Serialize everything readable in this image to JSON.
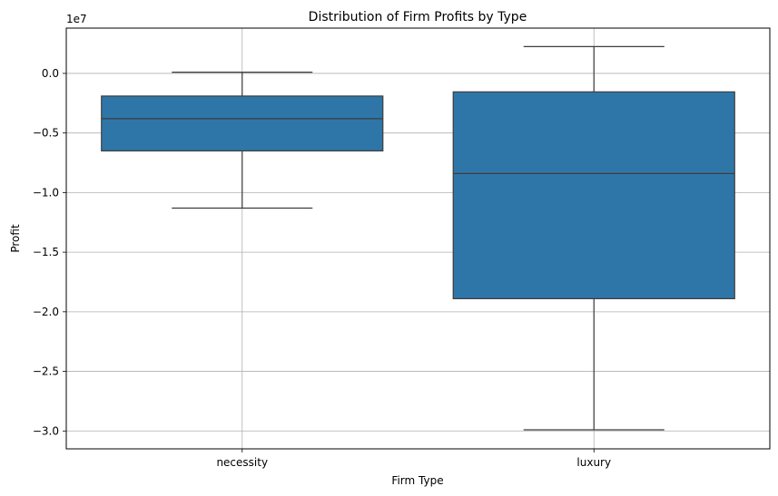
{
  "chart_data": {
    "type": "box",
    "title": "Distribution of Firm Profits by Type",
    "xlabel": "Firm Type",
    "ylabel": "Profit",
    "y_offset_label": "1e7",
    "y_scale": 10000000,
    "ylim": [
      -31500000,
      3800000
    ],
    "yticks": [
      0,
      -5000000,
      -10000000,
      -15000000,
      -20000000,
      -25000000,
      -30000000
    ],
    "ytick_labels": [
      "0.0",
      "−0.5",
      "−1.0",
      "−1.5",
      "−2.0",
      "−2.5",
      "−3.0"
    ],
    "grid": true,
    "box_color": "#2f76a8",
    "line_color": "#3d3d3d",
    "categories": [
      "necessity",
      "luxury"
    ],
    "boxes": [
      {
        "category": "necessity",
        "whisker_low": -11300000,
        "q1": -6500000,
        "median": -3800000,
        "q3": -1900000,
        "whisker_high": 100000
      },
      {
        "category": "luxury",
        "whisker_low": -29900000,
        "q1": -18900000,
        "median": -8400000,
        "q3": -1550000,
        "whisker_high": 2250000
      }
    ]
  }
}
